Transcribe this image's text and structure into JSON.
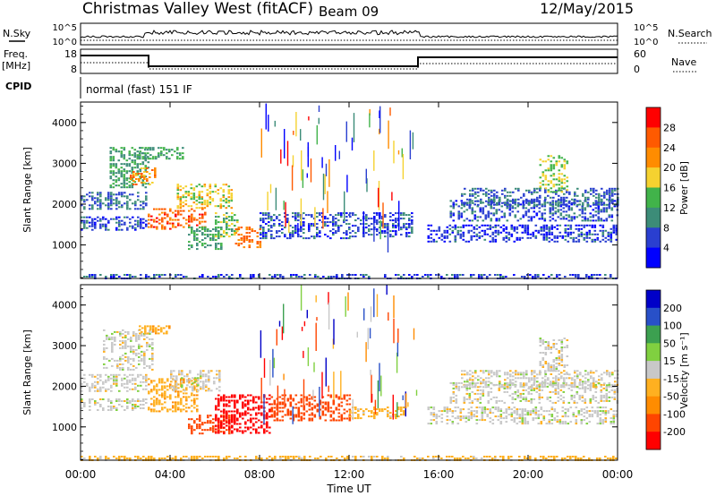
{
  "header": {
    "radar": "Christmas Valley West (fitACF)",
    "beam": "Beam 09",
    "date": "12/May/2015"
  },
  "top_panels": {
    "nsky_label": "N.Sky",
    "nsky_ticks": [
      "10^5",
      "10^0"
    ],
    "nsearch_label": "N.Search",
    "nsearch_ticks": [
      "10^5",
      "10^0"
    ],
    "freq_label": "Freq.",
    "freq_unit": "[MHz]",
    "freq_ticks": [
      "18",
      "8"
    ],
    "nave_label": "Nave",
    "nave_ticks": [
      "60",
      "0"
    ],
    "cpid_label": "CPID",
    "cpid_text": "normal (fast) 151 IF"
  },
  "colors": {
    "power_scale": [
      "#0000ff",
      "#2a3fd0",
      "#3c8c78",
      "#41b34a",
      "#f5d230",
      "#ff8c00",
      "#ff5a00",
      "#ff0000"
    ],
    "velocity_scale": [
      "#ff0000",
      "#ff4500",
      "#ff8c00",
      "#ffb020",
      "#c8c8c8",
      "#80d040",
      "#3ca050",
      "#2850c8",
      "#0000c8"
    ]
  },
  "chart_data": [
    {
      "type": "heatmap",
      "title": "",
      "ylabel": "Slant Range [km]",
      "xlabel": "",
      "ylim": [
        180,
        4500
      ],
      "yticks": [
        "1000",
        "2000",
        "3000",
        "4000"
      ],
      "colorbar_label": "Power [dB]",
      "colorbar_ticks": [
        "4",
        "8",
        "12",
        "16",
        "20",
        "24",
        "28"
      ],
      "regions": [
        {
          "t0": 0.0,
          "t1": 3.0,
          "r0": 1350,
          "r1": 1700,
          "value": 6
        },
        {
          "t0": 0.0,
          "t1": 3.0,
          "r0": 1900,
          "r1": 2300,
          "value": 8
        },
        {
          "t0": 1.3,
          "t1": 3.1,
          "r0": 2400,
          "r1": 3400,
          "value": 12
        },
        {
          "t0": 2.2,
          "t1": 3.3,
          "r0": 2500,
          "r1": 2900,
          "value": 22
        },
        {
          "t0": 2.6,
          "t1": 4.6,
          "r0": 3100,
          "r1": 3400,
          "value": 12
        },
        {
          "t0": 3.0,
          "t1": 5.6,
          "r0": 1400,
          "r1": 1900,
          "value": 26
        },
        {
          "t0": 4.3,
          "t1": 6.8,
          "r0": 1900,
          "r1": 2500,
          "value": 18
        },
        {
          "t0": 4.8,
          "t1": 6.3,
          "r0": 900,
          "r1": 1450,
          "value": 12
        },
        {
          "t0": 6.0,
          "t1": 7.0,
          "r0": 1200,
          "r1": 1800,
          "value": 14
        },
        {
          "t0": 6.9,
          "t1": 8.0,
          "r0": 950,
          "r1": 1450,
          "value": 24
        },
        {
          "t0": 8.0,
          "t1": 12.0,
          "r0": 1150,
          "r1": 1800,
          "value": 6
        },
        {
          "t0": 12.0,
          "t1": 14.8,
          "r0": 1200,
          "r1": 1800,
          "value": 6
        },
        {
          "t0": 15.5,
          "t1": 24.0,
          "r0": 1100,
          "r1": 1500,
          "value": 5
        },
        {
          "t0": 16.5,
          "t1": 24.0,
          "r0": 1600,
          "r1": 2100,
          "value": 7
        },
        {
          "t0": 17.0,
          "t1": 24.0,
          "r0": 2000,
          "r1": 2400,
          "value": 8
        },
        {
          "t0": 20.5,
          "t1": 21.8,
          "r0": 2300,
          "r1": 3200,
          "value": 16
        },
        {
          "t0": 0.0,
          "t1": 24.0,
          "r0": 180,
          "r1": 290,
          "value": 6
        }
      ]
    },
    {
      "type": "heatmap",
      "title": "",
      "ylabel": "Slant Range [km]",
      "xlabel": "Time UT",
      "ylim": [
        180,
        4500
      ],
      "yticks": [
        "1000",
        "2000",
        "3000",
        "4000"
      ],
      "xticks": [
        "00:00",
        "04:00",
        "08:00",
        "12:00",
        "16:00",
        "20:00",
        "00:00"
      ],
      "colorbar_label": "Velocity [m s⁻¹]",
      "colorbar_ticks": [
        "200",
        "100",
        "50",
        "15",
        "-15",
        "-50",
        "-100",
        "-200"
      ],
      "regions": [
        {
          "t0": 0.0,
          "t1": 3.0,
          "r0": 1400,
          "r1": 1700,
          "value": 0
        },
        {
          "t0": 0.0,
          "t1": 3.0,
          "r0": 1900,
          "r1": 2300,
          "value": 0
        },
        {
          "t0": 1.0,
          "t1": 3.2,
          "r0": 2400,
          "r1": 3400,
          "value": 0
        },
        {
          "t0": 2.6,
          "t1": 4.0,
          "r0": 3300,
          "r1": 3500,
          "value": -40
        },
        {
          "t0": 3.0,
          "t1": 5.2,
          "r0": 1400,
          "r1": 2200,
          "value": -40
        },
        {
          "t0": 4.0,
          "t1": 6.2,
          "r0": 1900,
          "r1": 2400,
          "value": 0
        },
        {
          "t0": 4.8,
          "t1": 6.8,
          "r0": 850,
          "r1": 1300,
          "value": -150
        },
        {
          "t0": 6.0,
          "t1": 8.5,
          "r0": 850,
          "r1": 1800,
          "value": -220
        },
        {
          "t0": 8.5,
          "t1": 12.0,
          "r0": 1150,
          "r1": 1800,
          "value": -120
        },
        {
          "t0": 12.0,
          "t1": 14.5,
          "r0": 1200,
          "r1": 1500,
          "value": -30
        },
        {
          "t0": 15.5,
          "t1": 24.0,
          "r0": 1100,
          "r1": 1500,
          "value": 0
        },
        {
          "t0": 16.5,
          "t1": 24.0,
          "r0": 1600,
          "r1": 2100,
          "value": 0
        },
        {
          "t0": 17.0,
          "t1": 24.0,
          "r0": 2000,
          "r1": 2400,
          "value": 0
        },
        {
          "t0": 20.5,
          "t1": 21.8,
          "r0": 2300,
          "r1": 3200,
          "value": 0
        },
        {
          "t0": 0.0,
          "t1": 24.0,
          "r0": 180,
          "r1": 290,
          "value": -30
        }
      ]
    }
  ]
}
